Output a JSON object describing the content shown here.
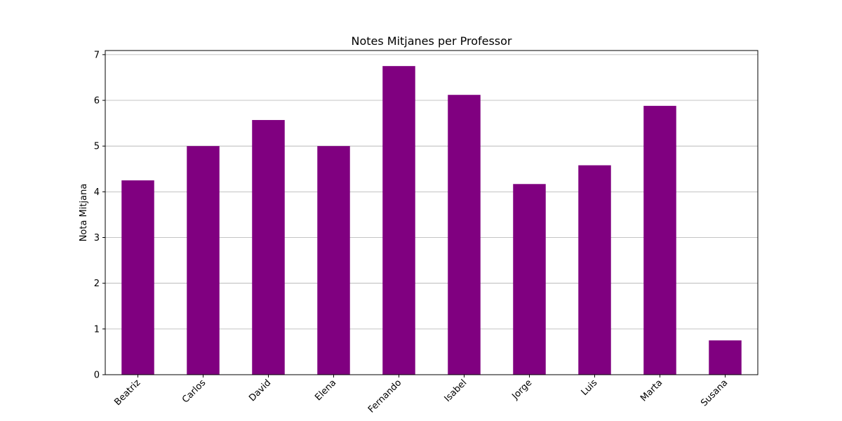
{
  "chart_data": {
    "type": "bar",
    "title": "Notes Mitjanes per Professor",
    "xlabel": "",
    "ylabel": "Nota Mitjana",
    "categories": [
      "Beatriz",
      "Carlos",
      "David",
      "Elena",
      "Fernando",
      "Isabel",
      "Jorge",
      "Luis",
      "Marta",
      "Susana"
    ],
    "values": [
      4.25,
      5.0,
      5.57,
      5.0,
      6.75,
      6.12,
      4.17,
      4.58,
      5.88,
      0.75
    ],
    "ylim": [
      0,
      7.09
    ],
    "yticks": [
      0,
      1,
      2,
      3,
      4,
      5,
      6,
      7
    ],
    "grid": "y-axis only",
    "legend": "none",
    "bar_color": "#800080",
    "tick_rotation": 45
  }
}
